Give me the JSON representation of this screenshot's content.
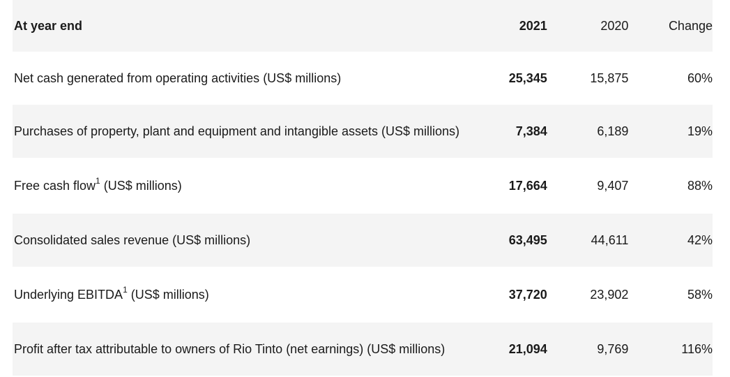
{
  "header": {
    "label": "At year end",
    "col_2021": "2021",
    "col_2020": "2020",
    "col_change": "Change"
  },
  "rows": [
    {
      "label": "Net cash generated from operating activities",
      "sup": "",
      "unit": " (US$ millions)",
      "v2021": "25,345",
      "v2020": "15,875",
      "change": "60%"
    },
    {
      "label": "Purchases of property, plant and equipment and intangible assets",
      "sup": "",
      "unit": " (US$ millions)",
      "v2021": "7,384",
      "v2020": "6,189",
      "change": "19%"
    },
    {
      "label": "Free cash flow",
      "sup": "1",
      "unit": " (US$ millions)",
      "v2021": "17,664",
      "v2020": "9,407",
      "change": "88%"
    },
    {
      "label": "Consolidated sales revenue",
      "sup": "",
      "unit": " (US$ millions)",
      "v2021": "63,495",
      "v2020": "44,611",
      "change": "42%"
    },
    {
      "label": "Underlying EBITDA",
      "sup": "1",
      "unit": " (US$ millions)",
      "v2021": "37,720",
      "v2020": "23,902",
      "change": "58%"
    },
    {
      "label": "Profit after tax attributable to owners of Rio Tinto (net earnings)",
      "sup": "",
      "unit": " (US$ millions)",
      "v2021": "21,094",
      "v2020": "9,769",
      "change": "116%"
    }
  ]
}
